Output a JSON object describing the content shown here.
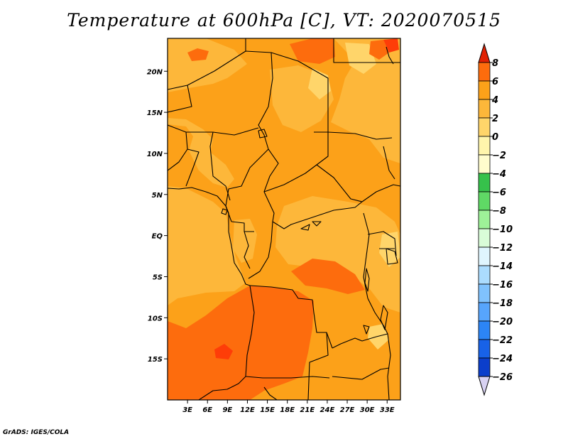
{
  "title": "Temperature at 600hPa [C], VT: 2020070515",
  "credit": "GrADS: IGES/COLA",
  "map": {
    "lon_range": [
      0,
      35
    ],
    "lat_range": [
      -20,
      24
    ],
    "lat_ticks": [
      {
        "value": 20,
        "label": "20N"
      },
      {
        "value": 15,
        "label": "15N"
      },
      {
        "value": 10,
        "label": "10N"
      },
      {
        "value": 5,
        "label": "5N"
      },
      {
        "value": 0,
        "label": "EQ"
      },
      {
        "value": -5,
        "label": "5S"
      },
      {
        "value": -10,
        "label": "10S"
      },
      {
        "value": -15,
        "label": "15S"
      }
    ],
    "lon_ticks": [
      {
        "value": 3,
        "label": "3E"
      },
      {
        "value": 6,
        "label": "6E"
      },
      {
        "value": 9,
        "label": "9E"
      },
      {
        "value": 12,
        "label": "12E"
      },
      {
        "value": 15,
        "label": "15E"
      },
      {
        "value": 18,
        "label": "18E"
      },
      {
        "value": 21,
        "label": "21E"
      },
      {
        "value": 24,
        "label": "24E"
      },
      {
        "value": 27,
        "label": "27E"
      },
      {
        "value": 30,
        "label": "30E"
      },
      {
        "value": 33,
        "label": "33E"
      }
    ],
    "colors": {
      "range_0_2": "#fdb73a",
      "range_2_4": "#fca119",
      "range_4_6": "#fd6c0d",
      "range_6_8": "#fe3d08",
      "range_m2_0": "#ffd56a",
      "border": "#000000"
    }
  },
  "colorbar": {
    "levels": [
      "8",
      "6",
      "4",
      "2",
      "0",
      "−2",
      "−4",
      "−6",
      "−8",
      "−10",
      "−12",
      "−14",
      "−16",
      "−18",
      "−20",
      "−22",
      "−24",
      "−26"
    ],
    "colors": [
      "#fe3d08",
      "#fd6c0d",
      "#fca119",
      "#fdb73a",
      "#ffd56a",
      "#fff5ac",
      "#fffccd",
      "#36c14b",
      "#5fd965",
      "#9ef198",
      "#d9fcd8",
      "#dff5fe",
      "#abdcfe",
      "#80c2fd",
      "#57a5fc",
      "#2c85f6",
      "#1862e8",
      "#0b3ecb",
      "#070a66"
    ],
    "top_color": "#e12204",
    "bottom_color": "#d8d2f2"
  }
}
